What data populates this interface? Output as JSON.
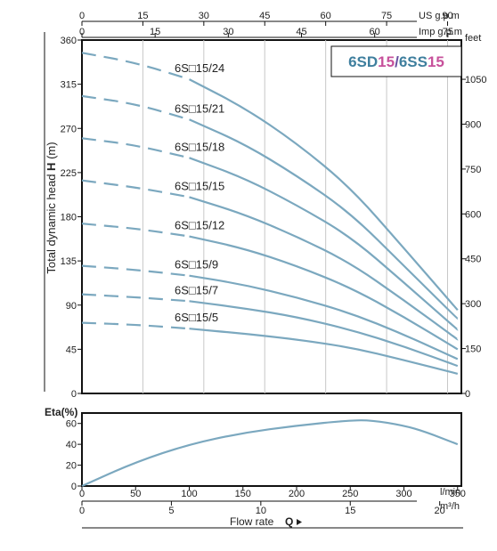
{
  "chart_data": [
    {
      "type": "line",
      "title_parts": [
        {
          "text": "6SD",
          "color": "#3f7f9e"
        },
        {
          "text": "15",
          "color": "#c7519b"
        },
        {
          "text": "/",
          "color": "#6a4fa0"
        },
        {
          "text": "6SS",
          "color": "#3f7f9e"
        },
        {
          "text": "15",
          "color": "#c7519b"
        }
      ],
      "ylabel_parts": [
        {
          "text": "Total dynamic head ",
          "bold": false
        },
        {
          "text": "H",
          "bold": true
        },
        {
          "text": " (m)",
          "bold": false
        }
      ],
      "ylim": [
        0,
        360
      ],
      "yticks": [
        0,
        45,
        90,
        135,
        180,
        225,
        270,
        315,
        360
      ],
      "xlim": [
        0,
        350
      ],
      "top_axis_us": {
        "unit": "US g.p.m",
        "ticks": [
          0,
          15,
          30,
          45,
          60,
          75,
          90
        ]
      },
      "top_axis_imp": {
        "unit": "Imp g.p.m",
        "ticks": [
          0,
          15,
          30,
          45,
          60,
          75
        ]
      },
      "right_axis_feet": {
        "unit": "feet",
        "ticks": [
          0,
          150,
          300,
          450,
          600,
          750,
          900,
          1050
        ]
      },
      "x_flow": [
        0,
        50,
        100,
        150,
        200,
        250,
        300,
        350
      ],
      "series": [
        {
          "name": "6S□15/24",
          "values": [
            347,
            337,
            320,
            292,
            255,
            210,
            148,
            85
          ]
        },
        {
          "name": "6S□15/21",
          "values": [
            303,
            295,
            279,
            255,
            222,
            184,
            130,
            76
          ]
        },
        {
          "name": "6S□15/18",
          "values": [
            260,
            253,
            240,
            220,
            192,
            160,
            113,
            65
          ]
        },
        {
          "name": "6S□15/15",
          "values": [
            217,
            210,
            200,
            183,
            160,
            133,
            95,
            55
          ]
        },
        {
          "name": "6S□15/12",
          "values": [
            173,
            168,
            160,
            148,
            130,
            108,
            78,
            45
          ]
        },
        {
          "name": "6S□15/9",
          "values": [
            130,
            126,
            120,
            111,
            98,
            82,
            60,
            35
          ]
        },
        {
          "name": "6S□15/7",
          "values": [
            101,
            98,
            94,
            87,
            78,
            65,
            48,
            28
          ]
        },
        {
          "name": "6S□15/5",
          "values": [
            72,
            70,
            66,
            61,
            55,
            47,
            34,
            20
          ]
        }
      ],
      "dashed_until_x": 100,
      "line_color": "#7ba8bf"
    },
    {
      "type": "line",
      "ylabel": "Eta(%)",
      "ylim": [
        0,
        70
      ],
      "yticks": [
        0,
        20,
        40,
        60
      ],
      "xlim": [
        0,
        350
      ],
      "xticks": [
        0,
        50,
        100,
        150,
        200,
        250,
        300,
        350
      ],
      "xunit": "l/min",
      "x2ticks": [
        0,
        5,
        10,
        15,
        20
      ],
      "x2unit": "m³/h",
      "xlabel": "Flow rate",
      "xlabel_symbol": "Q",
      "series": [
        {
          "x": [
            0,
            50,
            100,
            150,
            200,
            250,
            270,
            300,
            320,
            350
          ],
          "values": [
            0,
            23,
            40,
            51,
            58,
            63,
            63,
            58,
            52,
            40
          ]
        }
      ],
      "line_color": "#7ba8bf"
    }
  ]
}
